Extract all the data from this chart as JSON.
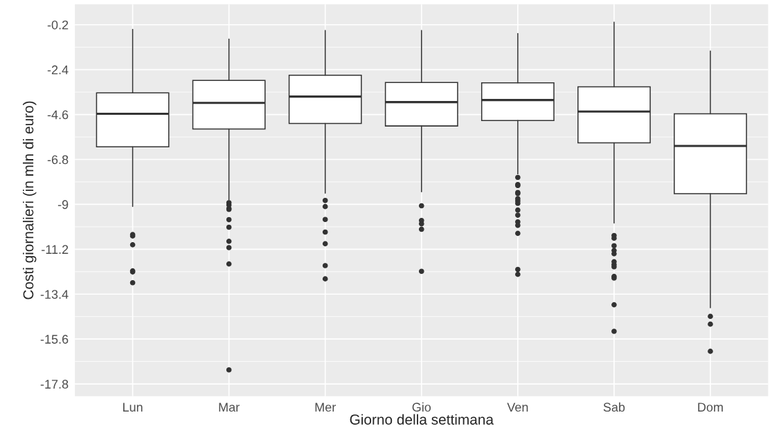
{
  "chart_data": {
    "type": "box",
    "xlabel": "Giorno della settimana",
    "ylabel": "Costi giornalieri (in mln di euro)",
    "categories": [
      "Lun",
      "Mar",
      "Mer",
      "Gio",
      "Ven",
      "Sab",
      "Dom"
    ],
    "boxes": [
      {
        "low": -9.1,
        "q1": -6.18,
        "median": -4.56,
        "q3": -3.54,
        "high": -0.43,
        "outliers": [
          -10.48,
          -10.55,
          -10.98,
          -12.26,
          -12.31,
          -12.84
        ]
      },
      {
        "low": -8.78,
        "q1": -5.31,
        "median": -4.03,
        "q3": -2.93,
        "high": -0.9,
        "outliers": [
          -8.92,
          -9.03,
          -9.2,
          -9.25,
          -9.75,
          -10.12,
          -10.81,
          -11.12,
          -11.92,
          -17.11
        ]
      },
      {
        "low": -8.45,
        "q1": -5.04,
        "median": -3.72,
        "q3": -2.67,
        "high": -0.48,
        "outliers": [
          -8.81,
          -9.11,
          -9.74,
          -10.36,
          -10.93,
          -12.0,
          -12.65
        ]
      },
      {
        "low": -8.38,
        "q1": -5.16,
        "median": -3.99,
        "q3": -3.03,
        "high": -0.48,
        "outliers": [
          -9.07,
          -9.79,
          -9.95,
          -10.22,
          -12.28
        ]
      },
      {
        "low": -7.51,
        "q1": -4.89,
        "median": -3.89,
        "q3": -3.05,
        "high": -0.63,
        "outliers": [
          -7.68,
          -8.03,
          -8.08,
          -8.42,
          -8.47,
          -8.72,
          -8.83,
          -8.95,
          -9.28,
          -9.53,
          -9.86,
          -10.03,
          -10.42,
          -12.19,
          -12.43
        ]
      },
      {
        "low": -9.92,
        "q1": -5.99,
        "median": -4.45,
        "q3": -3.24,
        "high": -0.07,
        "outliers": [
          -10.53,
          -10.66,
          -11.03,
          -11.26,
          -11.42,
          -11.81,
          -11.95,
          -12.06,
          -12.53,
          -12.61,
          -13.92,
          -15.22
        ]
      },
      {
        "low": -14.07,
        "q1": -8.48,
        "median": -6.14,
        "q3": -4.56,
        "high": -1.49,
        "outliers": [
          -14.49,
          -14.87,
          -16.2
        ]
      }
    ],
    "ylim": [
      -18.4,
      0.8
    ],
    "yticks": [
      -17.8,
      -15.6,
      -13.4,
      -11.2,
      -9,
      -6.8,
      -4.6,
      -2.4,
      -0.2
    ],
    "grid": true
  }
}
